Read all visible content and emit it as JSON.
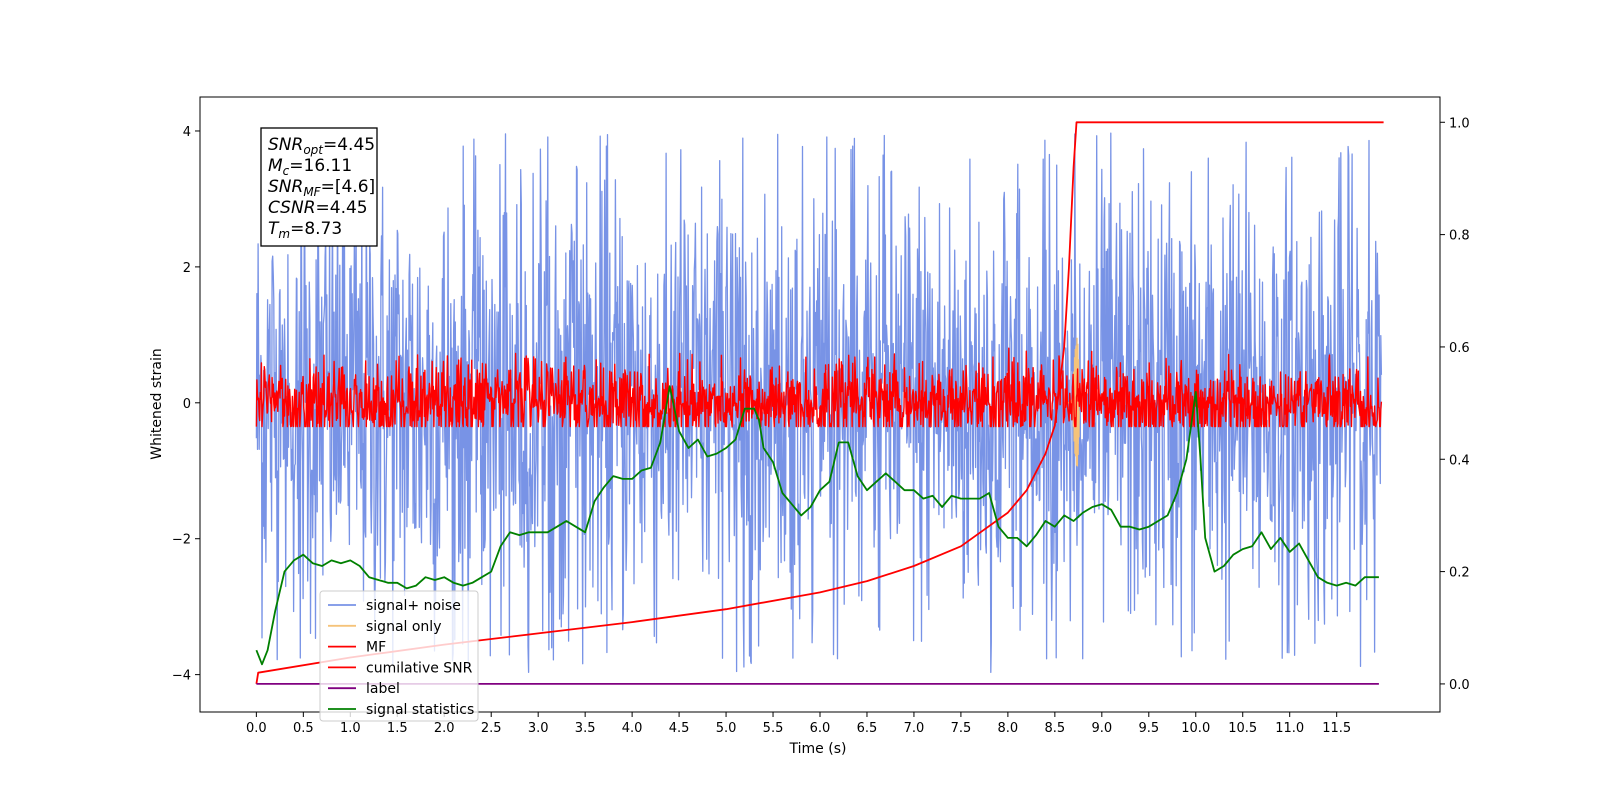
{
  "chart_data": {
    "type": "line",
    "title": "",
    "xlabel": "Time (s)",
    "ylabel": "Whitened strain",
    "xlim": [
      -0.6,
      12.6
    ],
    "ylim": [
      -4.55,
      4.5
    ],
    "y2lim": [
      -0.05,
      1.045
    ],
    "xticks": [
      "0.0",
      "0.5",
      "1.0",
      "1.5",
      "2.0",
      "2.5",
      "3.0",
      "3.5",
      "4.0",
      "4.5",
      "5.0",
      "5.5",
      "6.0",
      "6.5",
      "7.0",
      "7.5",
      "8.0",
      "8.5",
      "9.0",
      "9.5",
      "10.0",
      "10.5",
      "11.0",
      "11.5"
    ],
    "yticks": [
      "-4",
      "-2",
      "0",
      "2",
      "4"
    ],
    "y2ticks": [
      "0.0",
      "0.2",
      "0.4",
      "0.6",
      "0.8",
      "1.0"
    ],
    "annotation": {
      "lines": [
        {
          "sym": "SNR",
          "sub": "opt",
          "val": "=4.45"
        },
        {
          "sym": "M",
          "sub": "c",
          "val": "=16.11"
        },
        {
          "sym": "SNR",
          "sub": "MF",
          "val": "=[4.6]"
        },
        {
          "sym": "CSNR",
          "sub": "",
          "val": "=4.45"
        },
        {
          "sym": "T",
          "sub": "m",
          "val": "=8.73"
        }
      ]
    },
    "legend_position": "lower-left",
    "series": [
      {
        "name": "signal+ noise",
        "color": "#7893e6",
        "kind": "noise",
        "amplitude": 4.0,
        "axis": "left"
      },
      {
        "name": "signal only",
        "color": "#f5c37a",
        "kind": "chirp",
        "peak_time": 8.73,
        "peak_amplitude": 1.1,
        "axis": "left"
      },
      {
        "name": "MF",
        "color": "#ff0000",
        "kind": "noise",
        "amplitude": 1.3,
        "axis": "left"
      },
      {
        "name": "cumilative SNR",
        "color": "#ff0000",
        "kind": "cumulative",
        "axis": "right",
        "x": [
          0.0,
          0.02,
          1.0,
          2.0,
          3.0,
          4.0,
          5.0,
          6.0,
          6.5,
          7.0,
          7.5,
          8.0,
          8.2,
          8.4,
          8.5,
          8.6,
          8.65,
          8.7,
          8.73,
          12.0
        ],
        "values": [
          0.0,
          0.02,
          0.047,
          0.07,
          0.09,
          0.11,
          0.133,
          0.163,
          0.183,
          0.21,
          0.245,
          0.305,
          0.345,
          0.41,
          0.46,
          0.6,
          0.74,
          0.92,
          1.0,
          1.0
        ]
      },
      {
        "name": "label",
        "color": "#800080",
        "kind": "line",
        "axis": "right",
        "x": [
          0.0,
          11.95
        ],
        "values": [
          0.0,
          0.0
        ]
      },
      {
        "name": "signal statistics",
        "color": "#008000",
        "kind": "line",
        "axis": "right",
        "x": [
          0.0,
          0.06,
          0.12,
          0.2,
          0.3,
          0.4,
          0.5,
          0.6,
          0.7,
          0.8,
          0.9,
          1.0,
          1.1,
          1.2,
          1.3,
          1.4,
          1.5,
          1.6,
          1.7,
          1.8,
          1.9,
          2.0,
          2.1,
          2.2,
          2.3,
          2.4,
          2.5,
          2.6,
          2.7,
          2.8,
          2.9,
          3.0,
          3.1,
          3.2,
          3.3,
          3.4,
          3.5,
          3.6,
          3.7,
          3.8,
          3.9,
          4.0,
          4.1,
          4.2,
          4.3,
          4.4,
          4.45,
          4.5,
          4.6,
          4.7,
          4.8,
          4.9,
          5.0,
          5.1,
          5.2,
          5.3,
          5.35,
          5.4,
          5.5,
          5.6,
          5.7,
          5.8,
          5.9,
          6.0,
          6.1,
          6.2,
          6.3,
          6.4,
          6.5,
          6.6,
          6.7,
          6.8,
          6.9,
          7.0,
          7.1,
          7.2,
          7.3,
          7.4,
          7.5,
          7.6,
          7.7,
          7.8,
          7.9,
          8.0,
          8.1,
          8.2,
          8.3,
          8.4,
          8.5,
          8.6,
          8.7,
          8.8,
          8.9,
          9.0,
          9.1,
          9.2,
          9.3,
          9.4,
          9.5,
          9.6,
          9.7,
          9.8,
          9.9,
          10.0,
          10.05,
          10.1,
          10.2,
          10.3,
          10.4,
          10.5,
          10.6,
          10.7,
          10.8,
          10.9,
          11.0,
          11.1,
          11.2,
          11.3,
          11.4,
          11.5,
          11.6,
          11.7,
          11.8,
          11.95
        ],
        "values": [
          0.06,
          0.035,
          0.06,
          0.13,
          0.2,
          0.22,
          0.23,
          0.215,
          0.21,
          0.22,
          0.215,
          0.22,
          0.21,
          0.19,
          0.185,
          0.18,
          0.18,
          0.17,
          0.175,
          0.19,
          0.185,
          0.19,
          0.18,
          0.175,
          0.18,
          0.19,
          0.2,
          0.245,
          0.27,
          0.265,
          0.27,
          0.27,
          0.27,
          0.28,
          0.29,
          0.28,
          0.27,
          0.325,
          0.35,
          0.37,
          0.365,
          0.365,
          0.38,
          0.385,
          0.43,
          0.53,
          0.49,
          0.45,
          0.42,
          0.435,
          0.405,
          0.41,
          0.42,
          0.435,
          0.49,
          0.49,
          0.47,
          0.42,
          0.395,
          0.34,
          0.32,
          0.3,
          0.315,
          0.345,
          0.36,
          0.43,
          0.43,
          0.37,
          0.345,
          0.36,
          0.375,
          0.36,
          0.345,
          0.345,
          0.33,
          0.335,
          0.315,
          0.335,
          0.33,
          0.33,
          0.33,
          0.34,
          0.28,
          0.26,
          0.26,
          0.245,
          0.265,
          0.29,
          0.28,
          0.3,
          0.29,
          0.305,
          0.315,
          0.32,
          0.31,
          0.28,
          0.28,
          0.275,
          0.28,
          0.29,
          0.3,
          0.34,
          0.4,
          0.52,
          0.4,
          0.26,
          0.2,
          0.21,
          0.23,
          0.24,
          0.245,
          0.27,
          0.24,
          0.26,
          0.235,
          0.25,
          0.22,
          0.19,
          0.18,
          0.175,
          0.18,
          0.175,
          0.19,
          0.19
        ]
      }
    ]
  }
}
